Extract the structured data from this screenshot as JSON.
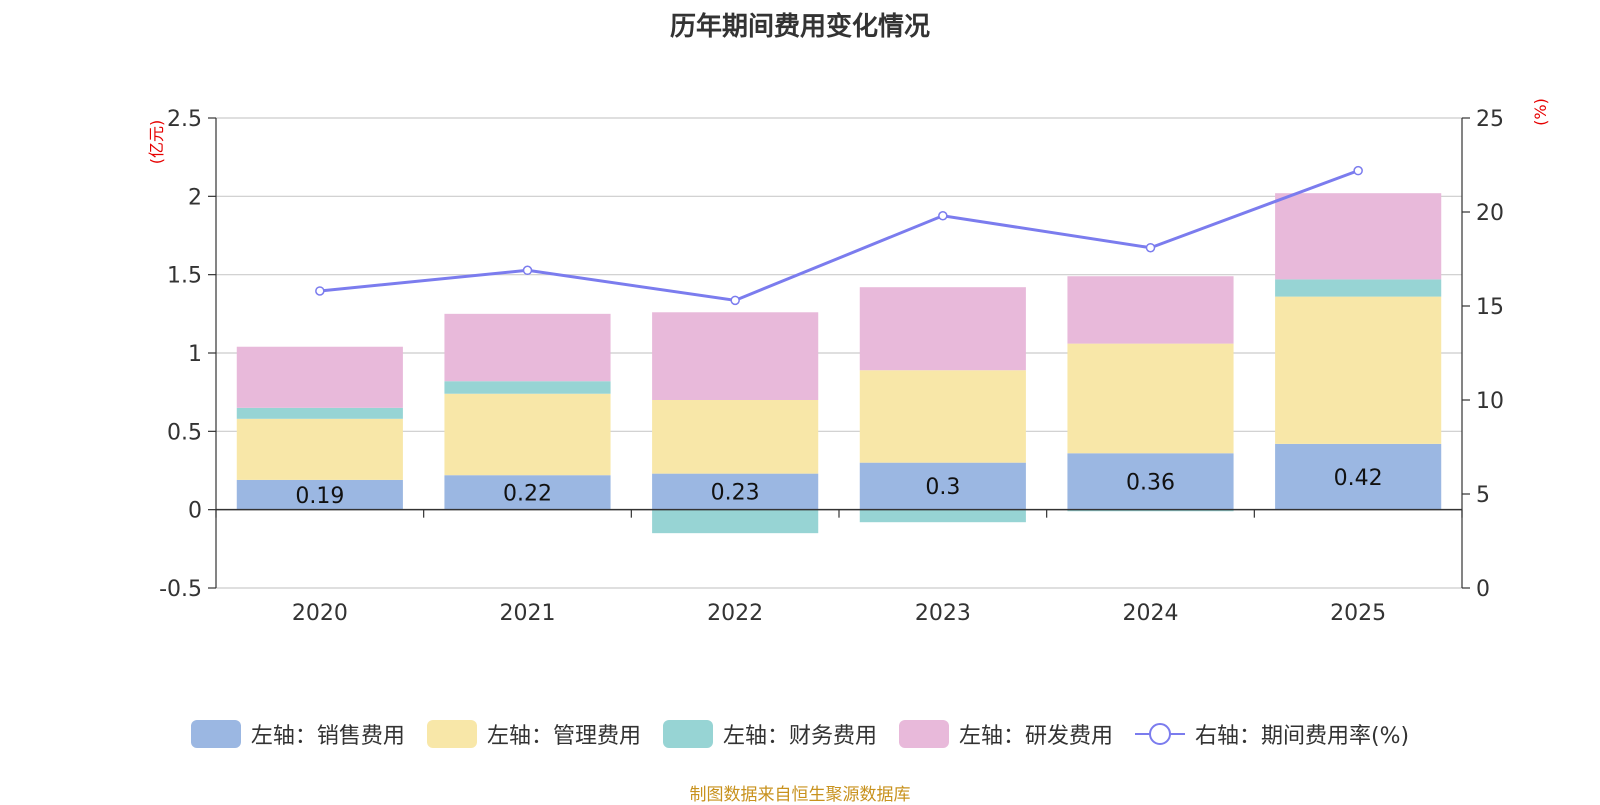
{
  "chart_data": {
    "type": "bar",
    "title": "历年期间费用变化情况",
    "categories": [
      "2020",
      "2021",
      "2022",
      "2023",
      "2024",
      "2025"
    ],
    "series": [
      {
        "name": "左轴：销售费用",
        "axis": "left",
        "color": "#9bb7e2",
        "values": [
          0.19,
          0.22,
          0.23,
          0.3,
          0.36,
          0.42
        ],
        "show_labels": true
      },
      {
        "name": "左轴：管理费用",
        "axis": "left",
        "color": "#f8e7a8",
        "values": [
          0.39,
          0.52,
          0.47,
          0.59,
          0.7,
          0.94
        ],
        "show_labels": false
      },
      {
        "name": "左轴：财务费用",
        "axis": "left",
        "color": "#97d4d4",
        "values": [
          0.07,
          0.08,
          -0.15,
          -0.08,
          -0.01,
          0.11
        ],
        "show_labels": false
      },
      {
        "name": "左轴：研发费用",
        "axis": "left",
        "color": "#e8b9da",
        "values": [
          0.39,
          0.43,
          0.56,
          0.53,
          0.43,
          0.55
        ],
        "show_labels": false
      },
      {
        "name": "右轴：期间费用率(%)",
        "axis": "right",
        "type": "line",
        "color": "#7b7cee",
        "values": [
          15.8,
          16.9,
          15.3,
          19.8,
          18.1,
          22.2
        ]
      }
    ],
    "y_left": {
      "label": "(亿元)",
      "ylim": [
        -0.5,
        2.5
      ],
      "ticks": [
        "-0.5",
        "0",
        "0.5",
        "1",
        "1.5",
        "2",
        "2.5"
      ]
    },
    "y_right": {
      "label": "(%)",
      "ylim": [
        0,
        25
      ],
      "ticks": [
        "0",
        "5",
        "10",
        "15",
        "20",
        "25"
      ]
    },
    "grid": true,
    "legend_position": "bottom"
  },
  "source_note": "制图数据来自恒生聚源数据库"
}
